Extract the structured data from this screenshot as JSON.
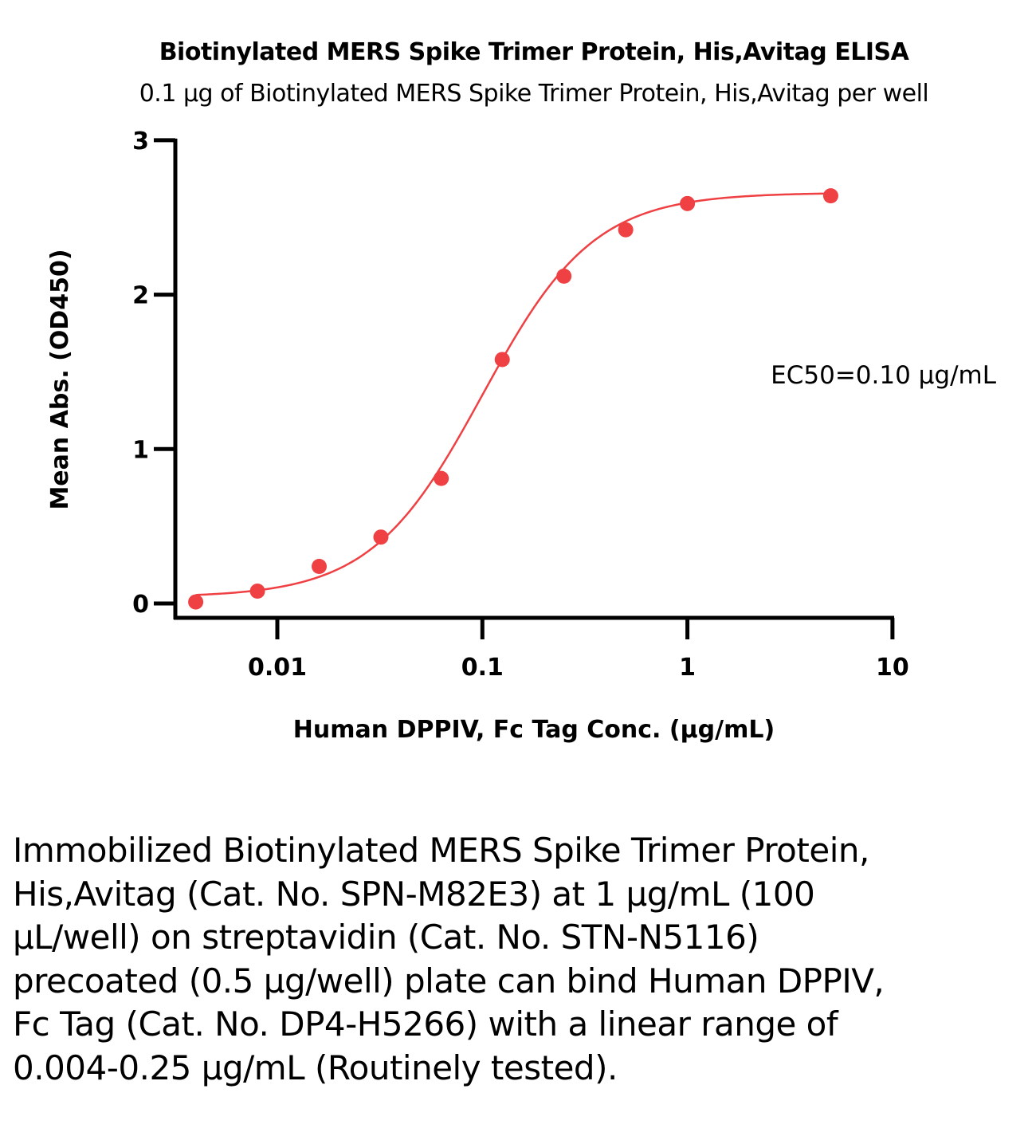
{
  "chart_data": {
    "type": "scatter",
    "title": "Biotinylated MERS Spike Trimer Protein, His,Avitag ELISA",
    "subtitle": "0.1 μg of Biotinylated MERS Spike Trimer Protein, His,Avitag per well",
    "xlabel": "Human DPPIV, Fc Tag Conc. (μg/mL)",
    "ylabel": "Mean Abs. (OD450)",
    "x_scale": "log",
    "xlim": [
      0.003,
      10
    ],
    "ylim": [
      0,
      3
    ],
    "x_ticks": [
      0.01,
      0.1,
      1,
      10
    ],
    "x_tick_labels": [
      "0.01",
      "0.1",
      "1",
      "10"
    ],
    "y_ticks": [
      0,
      1,
      2,
      3
    ],
    "y_tick_labels": [
      "0",
      "1",
      "2",
      "3"
    ],
    "grid": false,
    "series": [
      {
        "color": "#ef4043",
        "x": [
          0.004,
          0.008,
          0.016,
          0.032,
          0.063,
          0.125,
          0.25,
          0.5,
          1,
          5
        ],
        "y": [
          0.01,
          0.08,
          0.24,
          0.43,
          0.81,
          1.58,
          2.12,
          2.42,
          2.59,
          2.64
        ]
      }
    ],
    "fit": {
      "model": "4PL",
      "bottom": 0.04,
      "top": 2.66,
      "ec50": 0.1,
      "hill": 1.6,
      "color": "#ef4043"
    },
    "annotations": [
      "EC50=0.10 μg/mL"
    ]
  },
  "caption": "Immobilized Biotinylated MERS Spike Trimer Protein, His,Avitag (Cat. No. SPN-M82E3) at 1 μg/mL (100 μL/well) on streptavidin (Cat. No. STN-N5116) precoated (0.5 μg/well) plate can bind Human DPPIV, Fc Tag (Cat. No. DP4-H5266) with a linear range of 0.004-0.25 μg/mL (Routinely tested)."
}
